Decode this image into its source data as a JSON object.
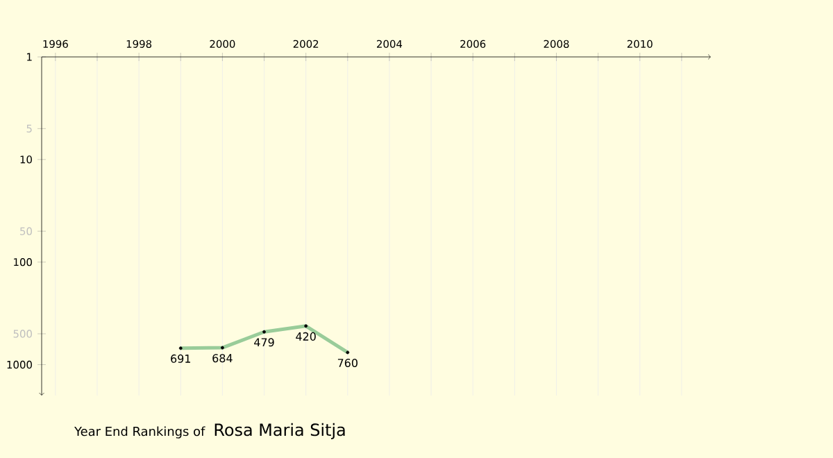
{
  "chart_data": {
    "type": "line",
    "title": "Year End Rankings of",
    "subtitle": "Rosa Maria Sitja",
    "x": [
      1999,
      2000,
      2001,
      2002,
      2003
    ],
    "series": [
      {
        "color": "#99cc99",
        "values": [
          691,
          684,
          479,
          420,
          760
        ]
      }
    ],
    "xlim": [
      1995.67,
      2011.7
    ],
    "xticks": [
      1996,
      {
        "value": 1997,
        "label": null
      },
      1998,
      {
        "value": 1999,
        "label": null
      },
      2000,
      {
        "value": 2001,
        "label": null
      },
      2002,
      {
        "value": 2003,
        "label": null
      },
      2004,
      {
        "value": 2005,
        "label": null
      },
      2006,
      {
        "value": 2007,
        "label": null
      },
      2008,
      {
        "value": 2009,
        "label": null
      },
      2010,
      {
        "value": 2011,
        "label": null
      }
    ],
    "ylim": [
      2000,
      1
    ],
    "yticks": [
      1,
      5,
      10,
      50,
      100,
      500,
      1000
    ],
    "log": "y",
    "grid": true,
    "marker": "circle",
    "line_style": "solid",
    "data_labels": true
  }
}
